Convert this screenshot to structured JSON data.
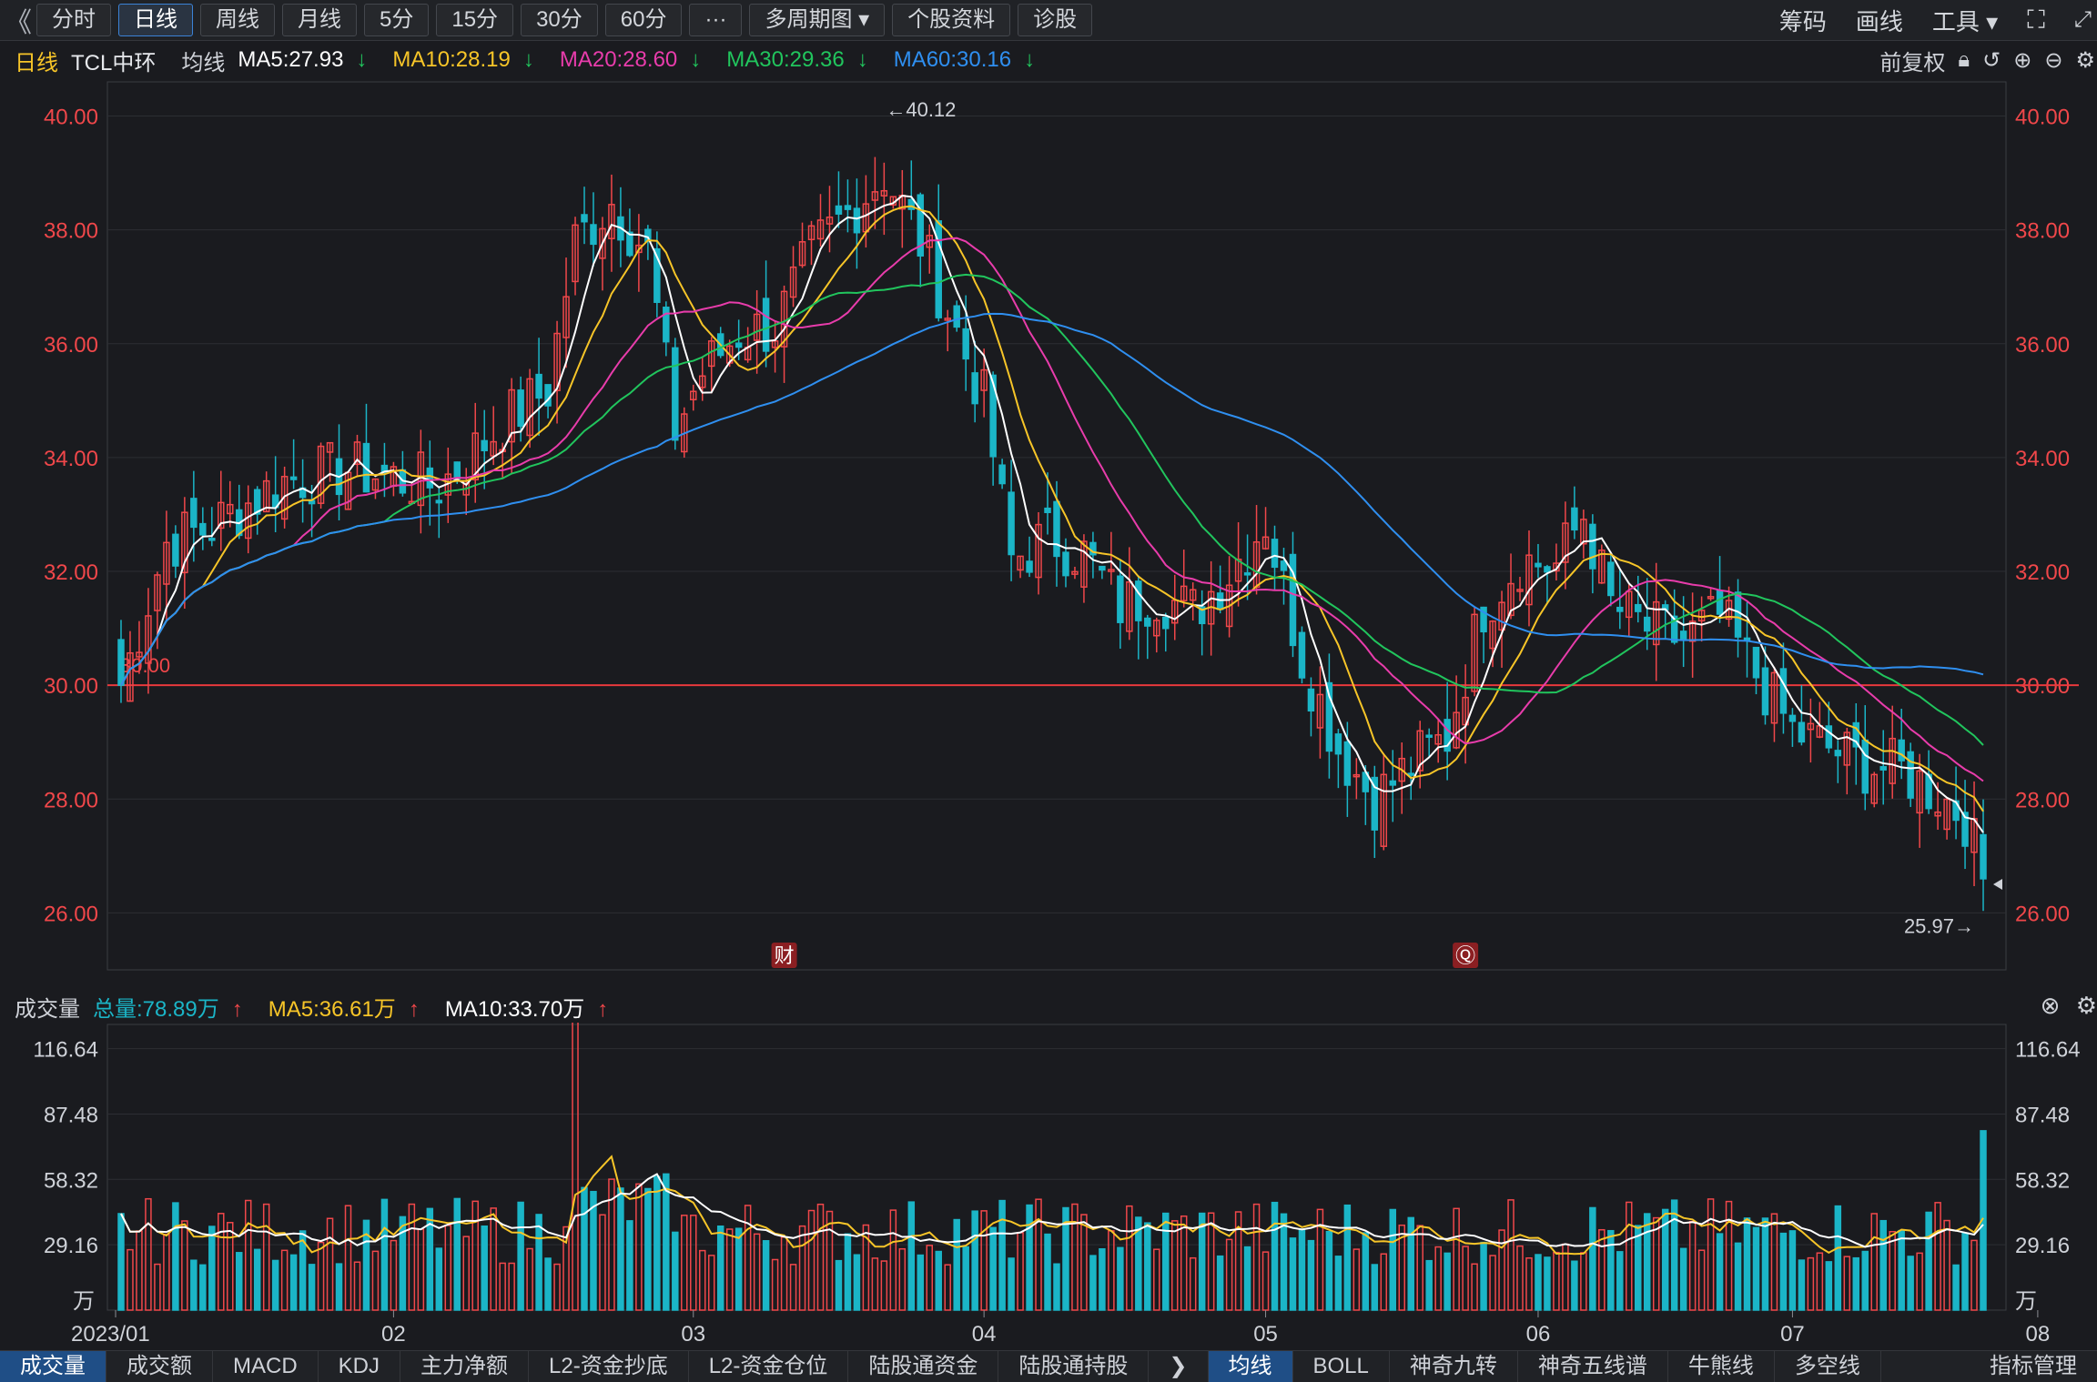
{
  "toolbar": {
    "back": "《",
    "tabs": [
      "分时",
      "日线",
      "周线",
      "月线",
      "5分",
      "15分",
      "30分",
      "60分",
      "···",
      "多周期图 ▾",
      "个股资料",
      "诊股"
    ],
    "active_tab": 1,
    "right_items": [
      "筹码",
      "画线",
      "工具 ▾"
    ],
    "fullscreen_icon": "fullscreen-icon"
  },
  "info": {
    "period": "日线",
    "stock_name": "TCL中环",
    "ma_label": "均线",
    "ma5": "MA5:27.93",
    "ma10": "MA10:28.19",
    "ma20": "MA20:28.60",
    "ma30": "MA30:29.36",
    "ma60": "MA60:30.16",
    "down_arrow": "↓",
    "adjust": "前复权"
  },
  "colors": {
    "up": "#f0474a",
    "down": "#1bb5c7",
    "ma5": "#ffffff",
    "ma10": "#f7c528",
    "ma20": "#e83cab",
    "ma30": "#21c55d",
    "ma60": "#2f8ff0",
    "axis_text": "#f0474a"
  },
  "volume_info": {
    "label": "成交量",
    "total": "总量:78.89万",
    "ma5": "MA5:36.61万",
    "ma10": "MA10:33.70万",
    "up_arrow": "↑"
  },
  "chart_data": {
    "type": "candlestick",
    "price_ticks": [
      "40.00",
      "38.00",
      "36.00",
      "34.00",
      "32.00",
      "30.00",
      "28.00",
      "26.00"
    ],
    "price_range": [
      25.0,
      40.6
    ],
    "volume_ticks": [
      "116.64",
      "87.48",
      "58.32",
      "29.16"
    ],
    "volume_unit": "万",
    "x_labels": [
      "2023/01",
      "02",
      "03",
      "04",
      "05",
      "06",
      "07",
      "08"
    ],
    "max_label": "←40.12",
    "min_label": "25.97→",
    "line_label": "30.00",
    "markers": [
      "财",
      "Ⓠ"
    ],
    "anchors": [
      {
        "i": 0,
        "c": 30.0
      },
      {
        "i": 5,
        "c": 32.5
      },
      {
        "i": 10,
        "c": 32.8
      },
      {
        "i": 18,
        "c": 33.6
      },
      {
        "i": 25,
        "c": 33.8
      },
      {
        "i": 35,
        "c": 33.5
      },
      {
        "i": 42,
        "c": 34.6
      },
      {
        "i": 47,
        "c": 35.2
      },
      {
        "i": 50,
        "c": 37.8
      },
      {
        "i": 54,
        "c": 38.5
      },
      {
        "i": 58,
        "c": 37.6
      },
      {
        "i": 61,
        "c": 34.5
      },
      {
        "i": 64,
        "c": 35.5
      },
      {
        "i": 68,
        "c": 36.2
      },
      {
        "i": 72,
        "c": 36.3
      },
      {
        "i": 76,
        "c": 37.6
      },
      {
        "i": 80,
        "c": 38.3
      },
      {
        "i": 84,
        "c": 39.0
      },
      {
        "i": 88,
        "c": 37.8
      },
      {
        "i": 92,
        "c": 36.2
      },
      {
        "i": 95,
        "c": 35.0
      },
      {
        "i": 98,
        "c": 32.2
      },
      {
        "i": 102,
        "c": 32.6
      },
      {
        "i": 106,
        "c": 32.3
      },
      {
        "i": 110,
        "c": 31.4
      },
      {
        "i": 114,
        "c": 31.6
      },
      {
        "i": 118,
        "c": 31.3
      },
      {
        "i": 122,
        "c": 32.0
      },
      {
        "i": 126,
        "c": 32.9
      },
      {
        "i": 130,
        "c": 30.5
      },
      {
        "i": 134,
        "c": 28.9
      },
      {
        "i": 138,
        "c": 28.0
      },
      {
        "i": 142,
        "c": 28.6
      },
      {
        "i": 146,
        "c": 29.1
      },
      {
        "i": 150,
        "c": 31.4
      },
      {
        "i": 154,
        "c": 32.2
      },
      {
        "i": 158,
        "c": 32.1
      },
      {
        "i": 161,
        "c": 33.0
      },
      {
        "i": 164,
        "c": 31.4
      },
      {
        "i": 168,
        "c": 31.0
      },
      {
        "i": 172,
        "c": 30.8
      },
      {
        "i": 176,
        "c": 31.2
      },
      {
        "i": 180,
        "c": 30.2
      },
      {
        "i": 184,
        "c": 29.2
      },
      {
        "i": 188,
        "c": 28.9
      },
      {
        "i": 192,
        "c": 28.6
      },
      {
        "i": 196,
        "c": 28.5
      },
      {
        "i": 200,
        "c": 28.1
      },
      {
        "i": 203,
        "c": 27.7
      },
      {
        "i": 205,
        "c": 26.6
      }
    ],
    "total_bars": 206
  },
  "bottom_tabs": [
    "成交量",
    "成交额",
    "MACD",
    "KDJ",
    "主力净额",
    "L2-资金抄底",
    "L2-资金仓位",
    "陆股通资金",
    "陆股通持股"
  ],
  "bottom_tabs_right": [
    "均线",
    "BOLL",
    "神奇九转",
    "神奇五线谱",
    "牛熊线",
    "多空线"
  ],
  "bottom_more": "指标管理"
}
